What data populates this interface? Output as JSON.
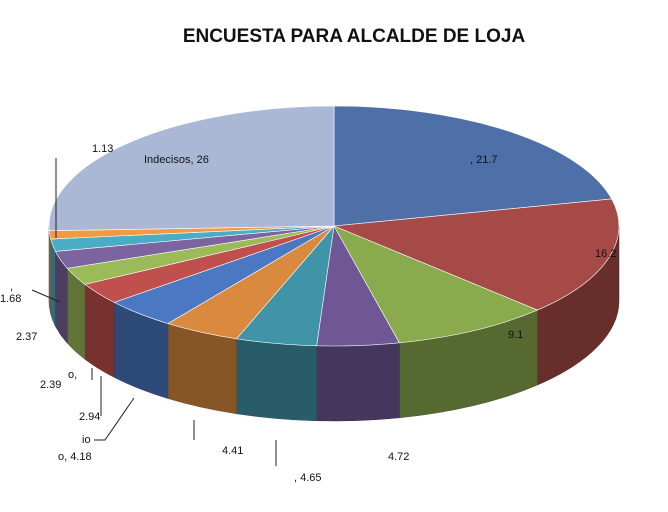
{
  "chart_data": {
    "type": "pie",
    "title": "ENCUESTA PARA ALCALDE DE LOJA",
    "slices": [
      {
        "label": "",
        "value": 21.7,
        "display": ", 21.7",
        "color": "#4F6FA8"
      },
      {
        "label": "",
        "value": 16.2,
        "display": "16.2",
        "color": "#A64A47"
      },
      {
        "label": "",
        "value": 9.1,
        "display": "9.1",
        "color": "#8AAA4E"
      },
      {
        "label": "",
        "value": 4.72,
        "display": "4.72",
        "color": "#6E5794"
      },
      {
        "label": "",
        "value": 4.65,
        "display": ", 4.65",
        "color": "#3F94A8"
      },
      {
        "label": "",
        "value": 4.41,
        "display": "4.41",
        "color": "#D98A3E"
      },
      {
        "label": "",
        "value": 4.18,
        "display": "o, 4.18",
        "color": "#4A78C2"
      },
      {
        "label": "",
        "value": 2.94,
        "display": "2.94",
        "color": "#C0504D"
      },
      {
        "label": "",
        "value": 2.39,
        "display": "2.39",
        "color": "#9BBB59"
      },
      {
        "label": "",
        "value": 2.37,
        "display": "2.37",
        "color": "#7B64A0"
      },
      {
        "label": "",
        "value": 1.68,
        "display": "1.68",
        "color": "#4BACC6"
      },
      {
        "label": "",
        "value": 1.13,
        "display": "1.13",
        "color": "#F29A43"
      },
      {
        "label": "Indecisos",
        "value": 26,
        "display": "Indecisos, 26",
        "color": "#AAB8D6"
      }
    ],
    "extra_fragments": [
      "o,",
      "io",
      ","
    ]
  }
}
